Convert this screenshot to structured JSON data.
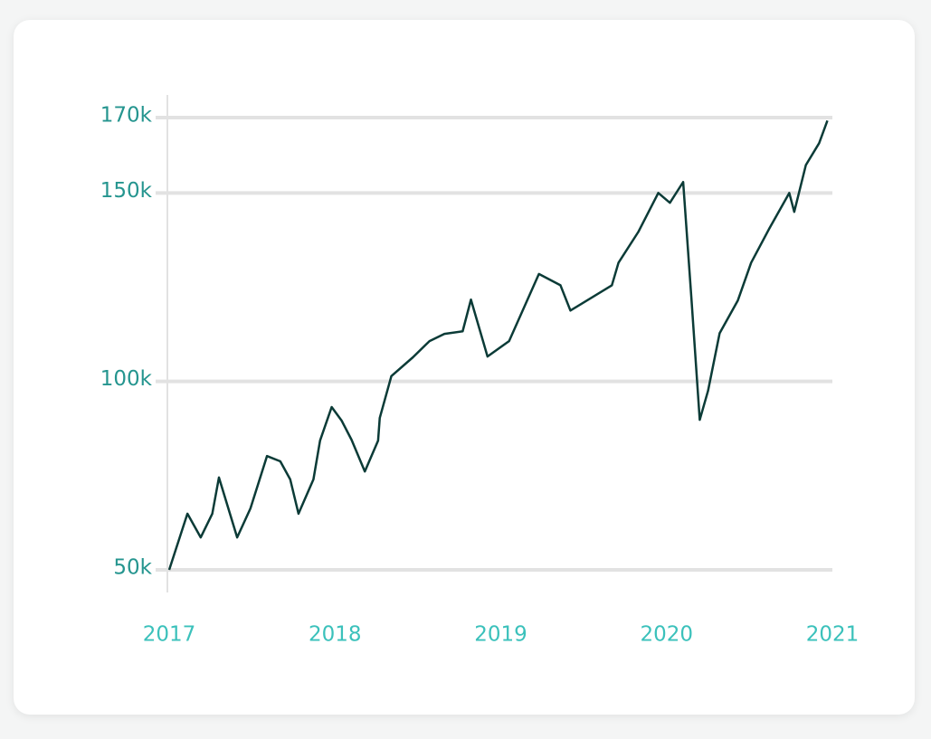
{
  "chart_data": {
    "type": "line",
    "x": [
      2017.0,
      2017.11,
      2017.19,
      2017.26,
      2017.3,
      2017.41,
      2017.49,
      2017.59,
      2017.67,
      2017.73,
      2017.78,
      2017.87,
      2017.91,
      2017.98,
      2018.04,
      2018.1,
      2018.18,
      2018.26,
      2018.27,
      2018.34,
      2018.47,
      2018.57,
      2018.66,
      2018.77,
      2018.82,
      2018.92,
      2019.05,
      2019.23,
      2019.36,
      2019.42,
      2019.67,
      2019.71,
      2019.83,
      2019.95,
      2020.02,
      2020.1,
      2020.15,
      2020.2,
      2020.25,
      2020.32,
      2020.43,
      2020.51,
      2020.62,
      2020.74,
      2020.77,
      2020.84,
      2020.92,
      2020.97
    ],
    "series": [
      {
        "color": "#0b3b37",
        "values": [
          50000,
          64900,
          58600,
          64900,
          74500,
          58600,
          66300,
          80200,
          78800,
          74000,
          64900,
          74000,
          84300,
          93200,
          89600,
          84500,
          76100,
          84300,
          90300,
          101400,
          106400,
          110700,
          112600,
          113300,
          121700,
          106600,
          110700,
          128500,
          125500,
          118800,
          125500,
          131500,
          139700,
          150000,
          147400,
          152900,
          121900,
          89800,
          97500,
          112800,
          121500,
          131500,
          140600,
          150000,
          145000,
          157400,
          163200,
          169200
        ]
      }
    ],
    "xlim": [
      2017,
      2021
    ],
    "xticks": [
      2017,
      2018,
      2019,
      2020,
      2021
    ],
    "ylim": [
      44000,
      176000
    ],
    "yticks": [
      {
        "value": 50000,
        "label": "50k"
      },
      {
        "value": 100000,
        "label": "100k"
      },
      {
        "value": 150000,
        "label": "150k"
      },
      {
        "value": 170000,
        "label": "170k"
      }
    ],
    "grid": true
  }
}
